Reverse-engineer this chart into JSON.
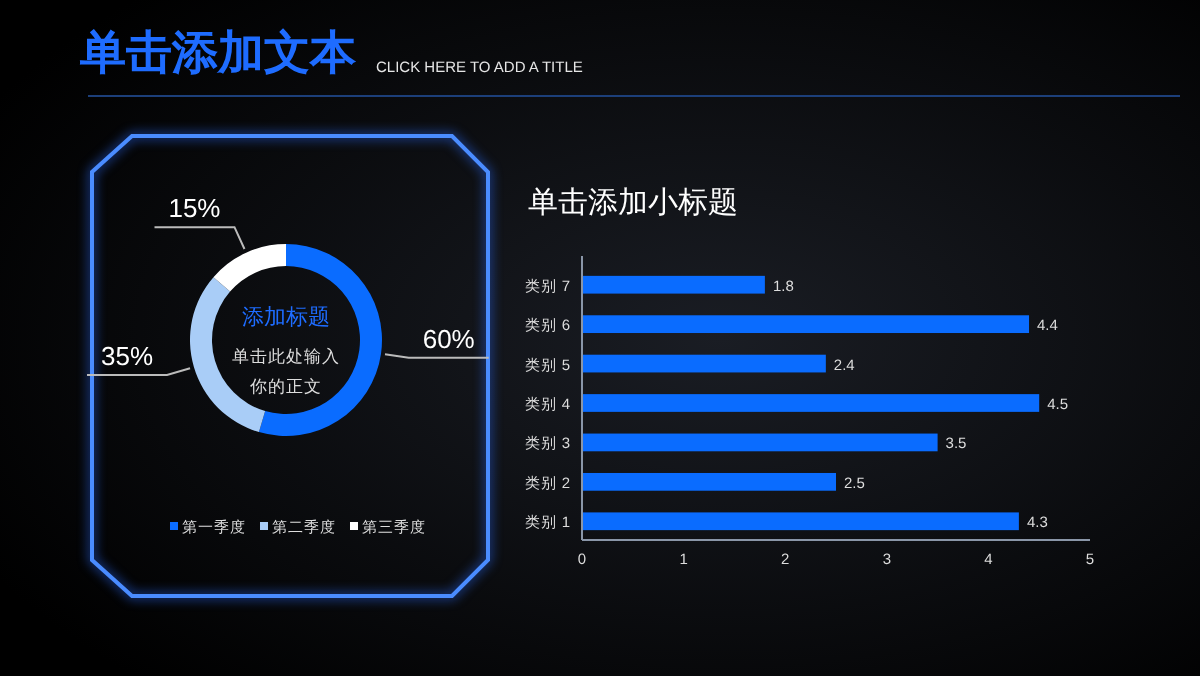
{
  "chart_data": [
    {
      "type": "donut",
      "title": "单击添加文本",
      "subtitle": "CLICK HERE TO ADD A TITLE",
      "annotations": [
        "添加标题",
        "单击此处输入",
        "你的正文"
      ],
      "categories": [
        "第一季度",
        "第二季度",
        "第三季度"
      ],
      "values": [
        60,
        35,
        15
      ],
      "value_labels": [
        "60%",
        "35%",
        "15%"
      ],
      "colors": [
        "#0a6cff",
        "#a9cdf7",
        "#ffffff"
      ],
      "legend": "bottom"
    },
    {
      "type": "bar",
      "title": "单击添加小标题",
      "orientation": "horizontal",
      "categories": [
        "类别 7",
        "类别 6",
        "类别 5",
        "类别 4",
        "类别 3",
        "类别 2",
        "类别 1"
      ],
      "values": [
        1.8,
        4.4,
        2.4,
        4.5,
        3.5,
        2.5,
        4.3
      ],
      "color": "#0a6cff",
      "xlim": [
        0,
        5
      ],
      "xticks": [
        0,
        1,
        2,
        3,
        4,
        5
      ],
      "data_labels": true
    }
  ]
}
